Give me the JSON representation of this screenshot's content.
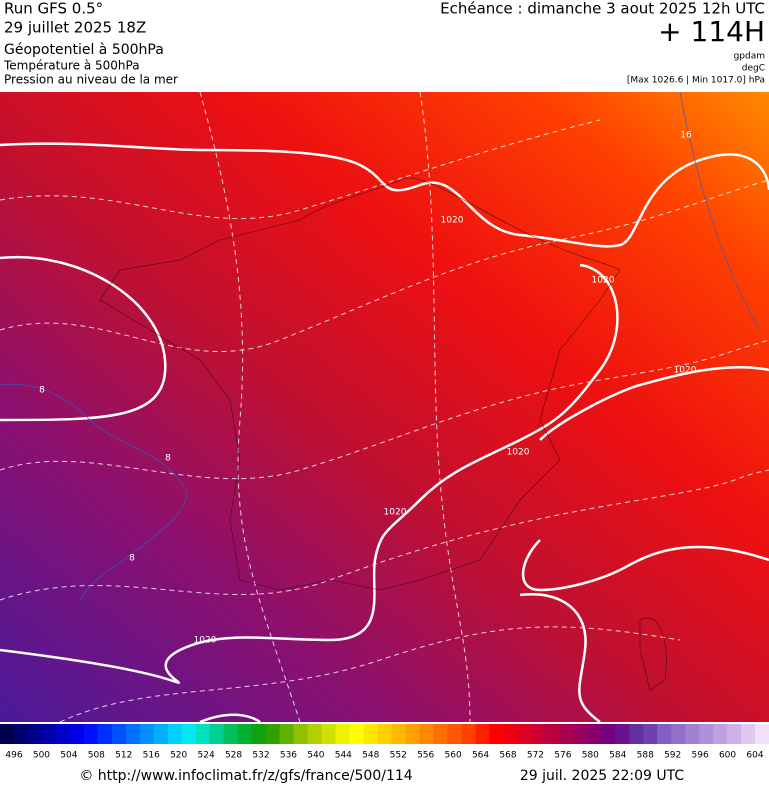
{
  "header": {
    "run": "Run GFS 0.5°",
    "date": "29 juillet 2025 18Z",
    "field": "Géopotentiel à 500hPa",
    "layer2": "Température à 500hPa",
    "layer3": "Pression au niveau de la mer",
    "echeance": "Echéance : dimanche 3 aout 2025 12h UTC",
    "lead": "+ 114H",
    "unit1": "gpdam",
    "unit2": "degC",
    "unit3": "[Max 1026.6 | Min 1017.0] hPa"
  },
  "map": {
    "contour_labels": [
      "1020",
      "1020",
      "1020",
      "1020",
      "1020",
      "1020",
      "8",
      "8",
      "8",
      "16"
    ]
  },
  "colorbar": {
    "labels": [
      496,
      500,
      504,
      508,
      512,
      516,
      520,
      524,
      528,
      532,
      536,
      540,
      544,
      548,
      552,
      556,
      560,
      564,
      568,
      572,
      576,
      580,
      584,
      588,
      592,
      596,
      600,
      604
    ],
    "colors": [
      "#000050",
      "#00006e",
      "#00008c",
      "#0000aa",
      "#0000c8",
      "#0000e6",
      "#0010ff",
      "#0030ff",
      "#0050ff",
      "#0070ff",
      "#0090ff",
      "#00b0ff",
      "#00d0ff",
      "#00e8f0",
      "#00e0c0",
      "#00d090",
      "#00c060",
      "#00b030",
      "#10a010",
      "#30a000",
      "#60b000",
      "#90c000",
      "#b0d000",
      "#d0e000",
      "#f0f000",
      "#ffff00",
      "#ffe800",
      "#ffd000",
      "#ffb800",
      "#ffa000",
      "#ff8800",
      "#ff7000",
      "#ff5800",
      "#ff4000",
      "#ff2000",
      "#ff0000",
      "#ee0010",
      "#dd0020",
      "#cc0030",
      "#bb0040",
      "#aa0050",
      "#990060",
      "#880070",
      "#770080",
      "#6a1090",
      "#6030a0",
      "#7040b0",
      "#8060c0",
      "#9070c8",
      "#a080d0",
      "#b090d8",
      "#c0a0e0",
      "#d0b0e8",
      "#e0c8f0",
      "#f0e0f8"
    ]
  },
  "footer": {
    "url": "© http://www.infoclimat.fr/z/gfs/france/500/114",
    "timestamp": "29 juil. 2025 22:09 UTC"
  }
}
